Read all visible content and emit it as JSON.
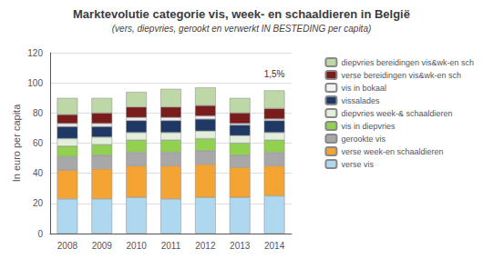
{
  "chart_data": {
    "type": "bar",
    "stacked": true,
    "title": "Marktevolutie categorie vis, week- en schaaldieren in België",
    "subtitle": "(vers, diepvries, gerookt en verwerkt IN BESTEDING per capita)",
    "ylabel": "In euro per capita",
    "annotations": [
      {
        "text": "1,5%",
        "x": "2014",
        "y": 103
      }
    ],
    "categories": [
      "2008",
      "2009",
      "2010",
      "2011",
      "2012",
      "2013",
      "2014"
    ],
    "series": [
      {
        "name": "verse vis",
        "color": "#ADD8F0",
        "values": [
          23,
          23,
          24,
          23,
          24,
          24,
          25
        ]
      },
      {
        "name": "verse week-en schaaldieren",
        "color": "#F4A433",
        "values": [
          19,
          20,
          21,
          22,
          22,
          20,
          20
        ]
      },
      {
        "name": "gerookte vis",
        "color": "#A8A8A8",
        "values": [
          9,
          9,
          9,
          9,
          9,
          8,
          9
        ]
      },
      {
        "name": "vis in diepvries",
        "color": "#92D050",
        "values": [
          7,
          7,
          8,
          8,
          8,
          8,
          8
        ]
      },
      {
        "name": "diepvries week-& schaaldieren",
        "color": "#E2EFDA",
        "values": [
          5,
          5,
          5,
          5,
          5,
          5,
          5
        ]
      },
      {
        "name": "vissalades",
        "color": "#1F3864",
        "values": [
          8,
          7,
          8,
          8,
          8,
          7,
          8
        ]
      },
      {
        "name": "vis in bokaal",
        "color": "#F2F2F2",
        "values": [
          2,
          2,
          2,
          2,
          2,
          1,
          1
        ]
      },
      {
        "name": "verse bereidingen vis&wk-en sch",
        "color": "#7B1C1C",
        "values": [
          6,
          7,
          7,
          7,
          7,
          7,
          7
        ]
      },
      {
        "name": "diepvries bereidingen vis&wk-en sch",
        "color": "#BDD7A7",
        "values": [
          11,
          10,
          10,
          12,
          12,
          10,
          12
        ]
      }
    ],
    "ylim": [
      0,
      120
    ],
    "yticks": [
      0,
      20,
      40,
      60,
      80,
      100,
      120
    ],
    "grid": true,
    "legend": "right"
  }
}
